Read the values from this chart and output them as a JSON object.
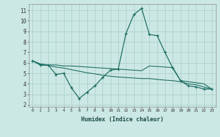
{
  "xlabel": "Humidex (Indice chaleur)",
  "background_color": "#cce8e4",
  "grid_color": "#aed0cc",
  "line_color": "#1a6b60",
  "x_values": [
    0,
    1,
    2,
    3,
    4,
    5,
    6,
    7,
    8,
    9,
    10,
    11,
    12,
    13,
    14,
    15,
    16,
    17,
    18,
    19,
    20,
    21,
    22,
    23
  ],
  "line1_y": [
    6.2,
    5.8,
    5.8,
    4.9,
    5.0,
    3.6,
    2.6,
    3.2,
    3.8,
    4.6,
    5.3,
    5.4,
    8.8,
    10.6,
    11.2,
    8.7,
    8.6,
    7.0,
    5.5,
    4.3,
    3.8,
    3.7,
    3.5,
    3.5
  ],
  "line2_y": [
    6.2,
    5.9,
    5.8,
    5.8,
    5.7,
    5.7,
    5.65,
    5.6,
    5.55,
    5.5,
    5.45,
    5.4,
    5.35,
    5.3,
    5.25,
    5.7,
    5.65,
    5.6,
    5.55,
    4.3,
    4.2,
    4.1,
    4.0,
    3.5
  ],
  "line3_y": [
    6.2,
    5.8,
    5.75,
    5.6,
    5.5,
    5.35,
    5.2,
    5.05,
    4.95,
    4.82,
    4.72,
    4.65,
    4.6,
    4.55,
    4.5,
    4.5,
    4.42,
    4.35,
    4.3,
    4.2,
    4.0,
    3.9,
    3.7,
    3.5
  ],
  "ylim": [
    1.8,
    11.6
  ],
  "xlim": [
    -0.5,
    23.5
  ],
  "yticks": [
    2,
    3,
    4,
    5,
    6,
    7,
    8,
    9,
    10,
    11
  ],
  "xticks": [
    0,
    1,
    2,
    3,
    4,
    5,
    6,
    7,
    8,
    9,
    10,
    11,
    12,
    13,
    14,
    15,
    16,
    17,
    18,
    19,
    20,
    21,
    22,
    23
  ]
}
